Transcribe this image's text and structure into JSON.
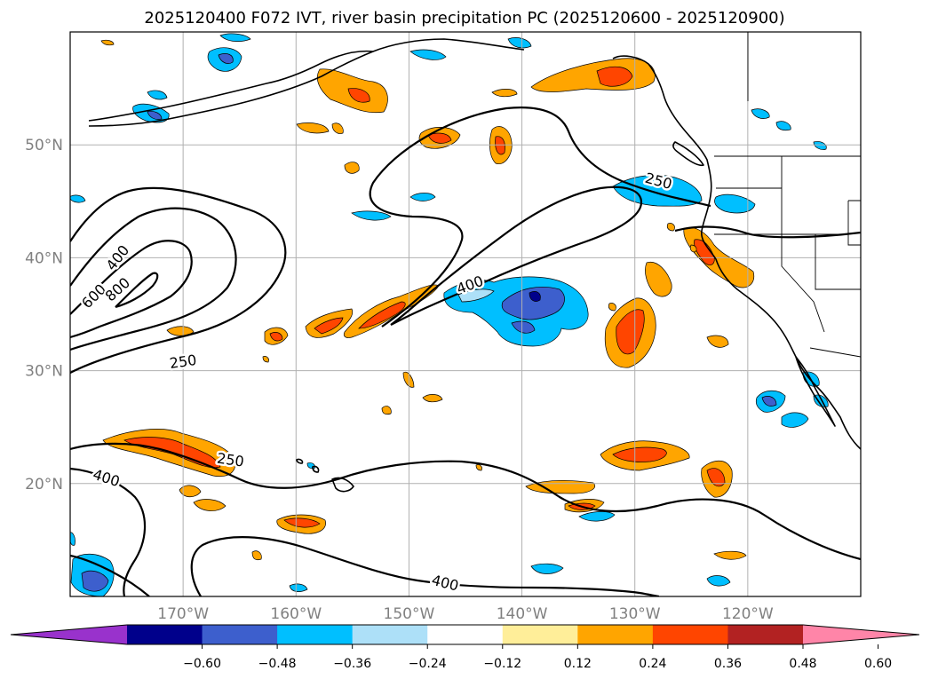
{
  "title": "2025120400 F072 IVT, river basin precipitation PC (2025120600 - 2025120900)",
  "map": {
    "lon_range": [
      -180,
      -110
    ],
    "lat_range": [
      10,
      60
    ],
    "lon_ticks": [
      {
        "lon": -170,
        "label": "170°W"
      },
      {
        "lon": -160,
        "label": "160°W"
      },
      {
        "lon": -150,
        "label": "150°W"
      },
      {
        "lon": -140,
        "label": "140°W"
      },
      {
        "lon": -130,
        "label": "130°W"
      },
      {
        "lon": -120,
        "label": "120°W"
      }
    ],
    "lat_ticks": [
      {
        "lat": 50,
        "label": "50°N"
      },
      {
        "lat": 40,
        "label": "40°N"
      },
      {
        "lat": 30,
        "label": "30°N"
      },
      {
        "lat": 20,
        "label": "20°N"
      }
    ],
    "grid": true
  },
  "ivt_contours": {
    "levels": [
      250,
      400,
      600,
      800
    ],
    "labels": [
      {
        "text": "250",
        "lon": -170.0,
        "lat": 30.8,
        "rot": -8
      },
      {
        "text": "400",
        "lon": -175.8,
        "lat": 40.0,
        "rot": -52
      },
      {
        "text": "600",
        "lon": -177.9,
        "lat": 36.6,
        "rot": -45
      },
      {
        "text": "800",
        "lon": -175.8,
        "lat": 37.2,
        "rot": -42
      },
      {
        "text": "400",
        "lon": -144.6,
        "lat": 37.6,
        "rot": -20
      },
      {
        "text": "250",
        "lon": -127.9,
        "lat": 46.8,
        "rot": 15
      },
      {
        "text": "250",
        "lon": -165.8,
        "lat": 22.1,
        "rot": 8
      },
      {
        "text": "400",
        "lon": -176.8,
        "lat": 20.5,
        "rot": 18
      },
      {
        "text": "400",
        "lon": -146.8,
        "lat": 11.2,
        "rot": 14
      }
    ]
  },
  "colorbar": {
    "colors": [
      "#9932CC",
      "#00008B",
      "#3D5FCD",
      "#00BFFF",
      "#ADE0F8",
      "#FFFFFF",
      "#FFEE99",
      "#FFA500",
      "#FF4500",
      "#B22222",
      "#FF85A8"
    ],
    "tick_labels": [
      "−0.60",
      "−0.48",
      "−0.36",
      "−0.24",
      "−0.12",
      "0.12",
      "0.24",
      "0.36",
      "0.48",
      "0.60"
    ],
    "extend": "both"
  }
}
